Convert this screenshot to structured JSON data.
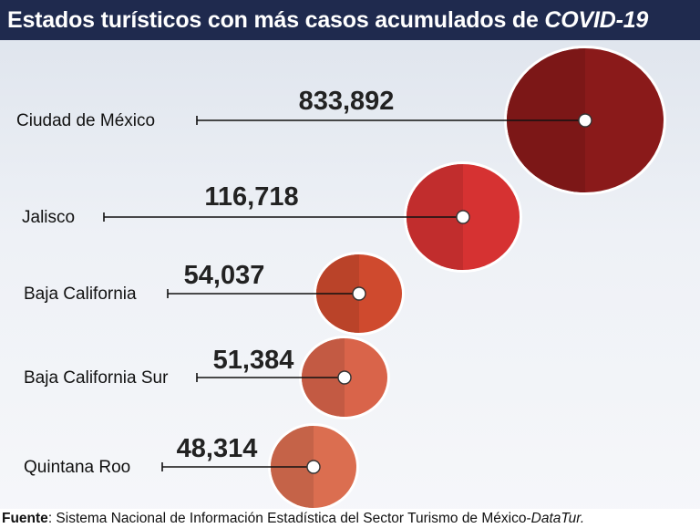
{
  "header": {
    "title_main": "Estados turísticos con más casos acumulados de ",
    "title_emphasis": "COVID-19"
  },
  "chart_data": {
    "type": "bubble",
    "categories": [
      "Ciudad de México",
      "Jalisco",
      "Baja California",
      "Baja California Sur",
      "Quintana Roo"
    ],
    "values": [
      833892,
      116718,
      54037,
      51384,
      48314
    ],
    "value_labels": [
      "833,892",
      "116,718",
      "54,037",
      "51,384",
      "48,314"
    ],
    "colors": [
      "#8a1a1a",
      "#d63232",
      "#cf4a2e",
      "#d9644a",
      "#db6e50"
    ]
  },
  "footer": {
    "source_label": "Fuente",
    "source_text": ": Sistema Nacional de Información Estadística del Sector Turismo de México-",
    "source_emphasis": "DataTur."
  }
}
